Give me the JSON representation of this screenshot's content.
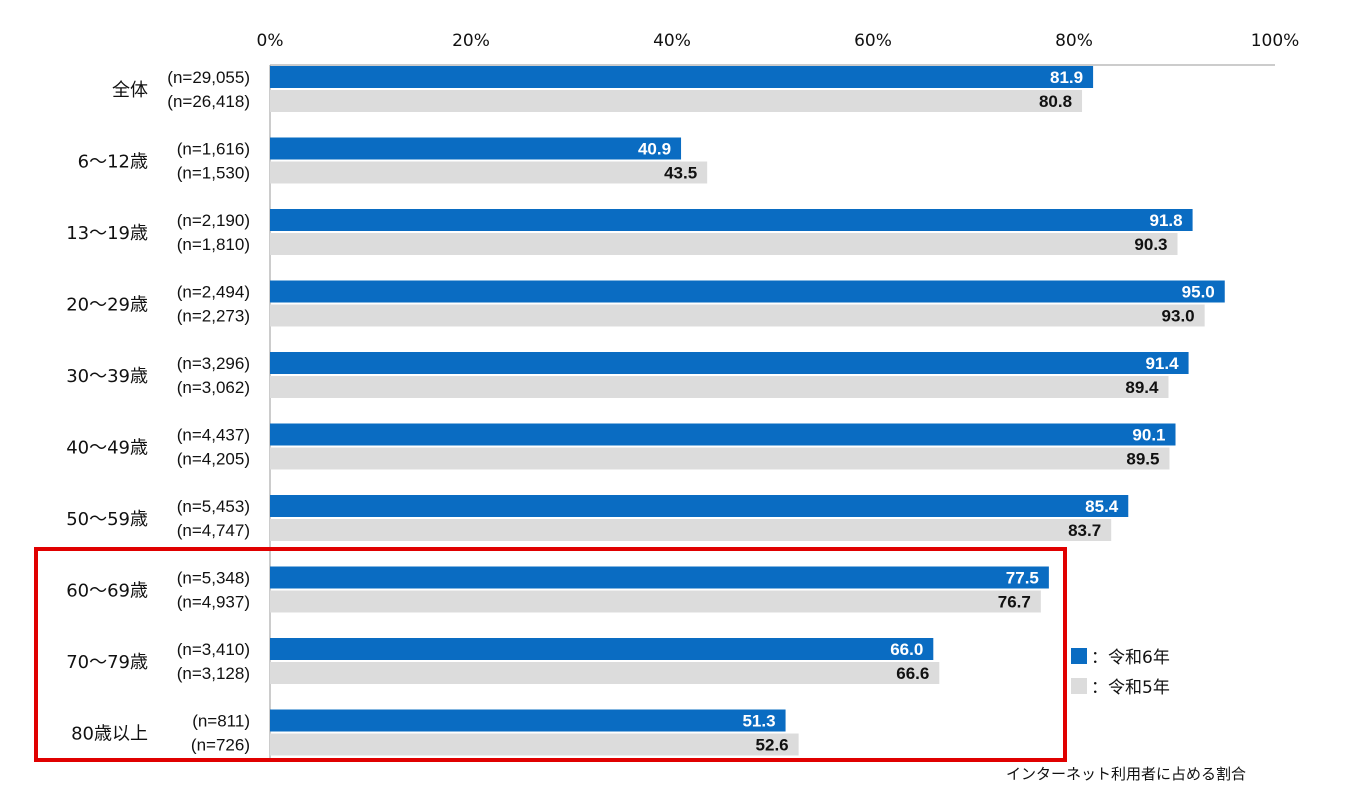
{
  "chart_data": {
    "type": "bar",
    "orientation": "horizontal",
    "categories": [
      "全体",
      "6～12歳",
      "13～19歳",
      "20～29歳",
      "30～39歳",
      "40～49歳",
      "50～59歳",
      "60～69歳",
      "70～79歳",
      "80歳以上"
    ],
    "series": [
      {
        "name": "令和6年",
        "color": "#0a6cc2",
        "values": [
          81.9,
          40.9,
          91.8,
          95.0,
          91.4,
          90.1,
          85.4,
          77.5,
          66.0,
          51.3
        ],
        "value_labels": [
          "81.9",
          "40.9",
          "91.8",
          "95.0",
          "91.4",
          "90.1",
          "85.4",
          "77.5",
          "66.0",
          "51.3"
        ],
        "n_labels": [
          "(n=29,055)",
          "(n=1,616)",
          "(n=2,190)",
          "(n=2,494)",
          "(n=3,296)",
          "(n=4,437)",
          "(n=5,453)",
          "(n=5,348)",
          "(n=3,410)",
          "(n=811)"
        ]
      },
      {
        "name": "令和5年",
        "color": "#dcdcdc",
        "values": [
          80.8,
          43.5,
          90.3,
          93.0,
          89.4,
          89.5,
          83.7,
          76.7,
          66.6,
          52.6
        ],
        "value_labels": [
          "80.8",
          "43.5",
          "90.3",
          "93.0",
          "89.4",
          "89.5",
          "83.7",
          "76.7",
          "66.6",
          "52.6"
        ],
        "n_labels": [
          "(n=26,418)",
          "(n=1,530)",
          "(n=1,810)",
          "(n=2,273)",
          "(n=3,062)",
          "(n=4,205)",
          "(n=4,747)",
          "(n=4,937)",
          "(n=3,128)",
          "(n=726)"
        ]
      }
    ],
    "xlim": [
      0,
      100
    ],
    "x_ticks": [
      "0%",
      "20%",
      "40%",
      "60%",
      "80%",
      "100%"
    ],
    "legend": {
      "placement": "right",
      "items": [
        {
          "marker": "■",
          "label": "：令和6年",
          "color": "#0a6cc2"
        },
        {
          "marker": "■",
          "label": "：令和5年",
          "color": "#dcdcdc"
        }
      ]
    },
    "note": "インターネット利用者に占める割合",
    "highlight": {
      "categories": [
        "60～69歳",
        "70～79歳",
        "80歳以上"
      ],
      "color": "#e00000"
    }
  }
}
